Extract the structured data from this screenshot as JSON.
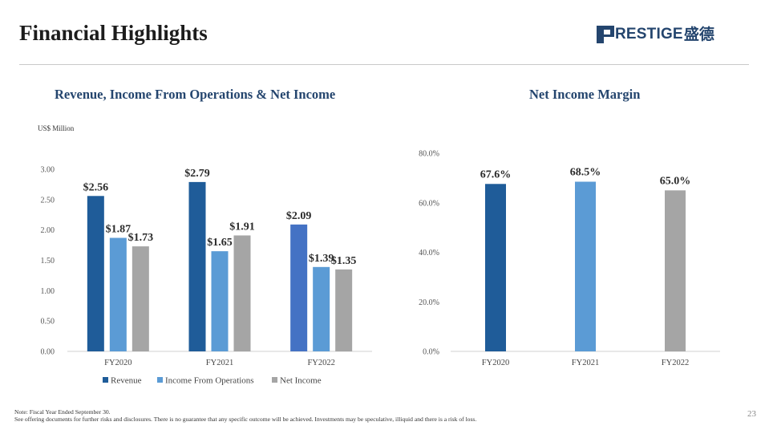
{
  "header": {
    "title": "Financial Highlights",
    "logo_text": "RESTIGE",
    "logo_cn": "盛德",
    "logo_icon": "prestige-p-logo-icon"
  },
  "left_chart": {
    "title": "Revenue, Income From Operations & Net Income",
    "unit": "US$ Million"
  },
  "right_chart": {
    "title": "Net Income Margin"
  },
  "footer": {
    "note_line1": "Note: Fiscal Year Ended September 30.",
    "note_line2": "See offering documents for further risks and disclosures. There is no guarantee that any specific outcome will be achieved. Investments may be speculative, illiquid and there is a risk of loss.",
    "page_number": "23"
  },
  "chart_data": [
    {
      "type": "bar",
      "title": "Revenue, Income From Operations & Net Income",
      "ylabel": "US$ Million",
      "categories": [
        "FY2020",
        "FY2021",
        "FY2022"
      ],
      "ylim": [
        0,
        3
      ],
      "yticks": [
        "0.00",
        "0.50",
        "1.00",
        "1.50",
        "2.00",
        "2.50",
        "3.00"
      ],
      "grid": false,
      "legend": "bottom",
      "series": [
        {
          "name": "Revenue",
          "values": [
            2.56,
            2.79,
            2.09
          ],
          "labels": [
            "$2.56",
            "$2.79",
            "$2.09"
          ],
          "color": "#1f5c99",
          "point_colors": [
            "#1f5c99",
            "#1f5c99",
            "#4472c4"
          ]
        },
        {
          "name": "Income From Operations",
          "values": [
            1.87,
            1.65,
            1.39
          ],
          "labels": [
            "$1.87",
            "$1.65",
            "$1.39"
          ],
          "color": "#5b9bd5"
        },
        {
          "name": "Net Income",
          "values": [
            1.73,
            1.91,
            1.35
          ],
          "labels": [
            "$1.73",
            "$1.91",
            "$1.35"
          ],
          "color": "#a5a5a5"
        }
      ]
    },
    {
      "type": "bar",
      "title": "Net Income Margin",
      "categories": [
        "FY2020",
        "FY2021",
        "FY2022"
      ],
      "values": [
        67.6,
        68.5,
        65.0
      ],
      "labels": [
        "67.6%",
        "68.5%",
        "65.0%"
      ],
      "colors": [
        "#1f5c99",
        "#5b9bd5",
        "#a5a5a5"
      ],
      "ylim": [
        0,
        80
      ],
      "yticks": [
        "0.0%",
        "20.0%",
        "40.0%",
        "60.0%",
        "80.0%"
      ],
      "grid": false
    }
  ]
}
